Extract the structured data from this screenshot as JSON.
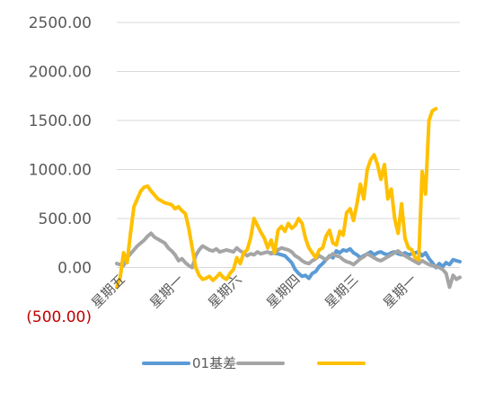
{
  "chart_data": {
    "type": "line",
    "ylim": [
      -500,
      2500
    ],
    "yticks": [
      {
        "value": 2500,
        "label": "2500.00"
      },
      {
        "value": 2000,
        "label": "2000.00"
      },
      {
        "value": 1500,
        "label": "1500.00"
      },
      {
        "value": 1000,
        "label": "1000.00"
      },
      {
        "value": 500,
        "label": "500.00"
      },
      {
        "value": 0,
        "label": "0.00"
      },
      {
        "value": -500,
        "label": "(500.00)"
      }
    ],
    "xlim": [
      0,
      100
    ],
    "x_tick_labels": [
      {
        "x": 0,
        "label": "星期五"
      },
      {
        "x": 17,
        "label": "星期一"
      },
      {
        "x": 34,
        "label": "星期六"
      },
      {
        "x": 51,
        "label": "星期四"
      },
      {
        "x": 68,
        "label": "星期三"
      },
      {
        "x": 85,
        "label": "星期一"
      }
    ],
    "grid": "horizontal",
    "legend_position": "bottom",
    "series": [
      {
        "name": "01基差",
        "color": "#5b9bd5",
        "points": [
          [
            45,
            150
          ],
          [
            47,
            140
          ],
          [
            49,
            120
          ],
          [
            51,
            50
          ],
          [
            52,
            -20
          ],
          [
            53,
            -60
          ],
          [
            54,
            -90
          ],
          [
            55,
            -80
          ],
          [
            56,
            -110
          ],
          [
            57,
            -60
          ],
          [
            58,
            -40
          ],
          [
            59,
            10
          ],
          [
            60,
            40
          ],
          [
            61,
            80
          ],
          [
            62,
            120
          ],
          [
            63,
            100
          ],
          [
            64,
            170
          ],
          [
            65,
            150
          ],
          [
            66,
            180
          ],
          [
            67,
            170
          ],
          [
            68,
            190
          ],
          [
            69,
            150
          ],
          [
            70,
            130
          ],
          [
            71,
            100
          ],
          [
            72,
            120
          ],
          [
            73,
            140
          ],
          [
            74,
            160
          ],
          [
            75,
            130
          ],
          [
            76,
            150
          ],
          [
            77,
            160
          ],
          [
            78,
            140
          ],
          [
            79,
            130
          ],
          [
            80,
            150
          ],
          [
            81,
            160
          ],
          [
            82,
            140
          ],
          [
            83,
            130
          ],
          [
            84,
            150
          ],
          [
            85,
            130
          ],
          [
            86,
            140
          ],
          [
            87,
            150
          ],
          [
            88,
            160
          ],
          [
            89,
            120
          ],
          [
            90,
            150
          ],
          [
            91,
            90
          ],
          [
            92,
            50
          ],
          [
            93,
            0
          ],
          [
            94,
            40
          ],
          [
            95,
            10
          ],
          [
            96,
            50
          ],
          [
            97,
            30
          ],
          [
            98,
            80
          ],
          [
            99,
            70
          ],
          [
            100,
            60
          ]
        ]
      },
      {
        "name": "",
        "color": "#a5a5a5",
        "points": [
          [
            0,
            40
          ],
          [
            2,
            20
          ],
          [
            3,
            100
          ],
          [
            5,
            180
          ],
          [
            6,
            220
          ],
          [
            8,
            280
          ],
          [
            9,
            320
          ],
          [
            10,
            350
          ],
          [
            11,
            310
          ],
          [
            12,
            290
          ],
          [
            13,
            270
          ],
          [
            14,
            250
          ],
          [
            15,
            200
          ],
          [
            16,
            170
          ],
          [
            17,
            130
          ],
          [
            18,
            70
          ],
          [
            19,
            90
          ],
          [
            20,
            50
          ],
          [
            21,
            20
          ],
          [
            22,
            0
          ],
          [
            23,
            120
          ],
          [
            24,
            180
          ],
          [
            25,
            220
          ],
          [
            26,
            200
          ],
          [
            27,
            180
          ],
          [
            28,
            170
          ],
          [
            29,
            190
          ],
          [
            30,
            160
          ],
          [
            31,
            170
          ],
          [
            32,
            180
          ],
          [
            33,
            170
          ],
          [
            34,
            160
          ],
          [
            35,
            200
          ],
          [
            36,
            170
          ],
          [
            37,
            150
          ],
          [
            38,
            120
          ],
          [
            39,
            140
          ],
          [
            40,
            130
          ],
          [
            41,
            160
          ],
          [
            42,
            140
          ],
          [
            43,
            150
          ],
          [
            44,
            160
          ],
          [
            45,
            140
          ],
          [
            46,
            150
          ],
          [
            47,
            180
          ],
          [
            48,
            200
          ],
          [
            49,
            190
          ],
          [
            50,
            180
          ],
          [
            51,
            160
          ],
          [
            52,
            120
          ],
          [
            53,
            100
          ],
          [
            54,
            70
          ],
          [
            55,
            50
          ],
          [
            56,
            40
          ],
          [
            57,
            70
          ],
          [
            58,
            90
          ],
          [
            59,
            120
          ],
          [
            60,
            100
          ],
          [
            61,
            80
          ],
          [
            62,
            110
          ],
          [
            63,
            140
          ],
          [
            64,
            120
          ],
          [
            65,
            110
          ],
          [
            66,
            80
          ],
          [
            67,
            60
          ],
          [
            68,
            50
          ],
          [
            69,
            30
          ],
          [
            70,
            60
          ],
          [
            71,
            90
          ],
          [
            72,
            110
          ],
          [
            73,
            140
          ],
          [
            74,
            120
          ],
          [
            75,
            100
          ],
          [
            76,
            80
          ],
          [
            77,
            70
          ],
          [
            78,
            90
          ],
          [
            79,
            110
          ],
          [
            80,
            130
          ],
          [
            81,
            150
          ],
          [
            82,
            170
          ],
          [
            83,
            140
          ],
          [
            84,
            120
          ],
          [
            85,
            100
          ],
          [
            86,
            80
          ],
          [
            87,
            60
          ],
          [
            88,
            40
          ],
          [
            89,
            70
          ],
          [
            90,
            50
          ],
          [
            91,
            30
          ],
          [
            92,
            20
          ],
          [
            93,
            10
          ],
          [
            94,
            0
          ],
          [
            95,
            -20
          ],
          [
            96,
            -60
          ],
          [
            97,
            -200
          ],
          [
            98,
            -80
          ],
          [
            99,
            -120
          ],
          [
            100,
            -100
          ]
        ]
      },
      {
        "name": "",
        "color": "#ffc000",
        "points": [
          [
            0,
            -200
          ],
          [
            1,
            -100
          ],
          [
            2,
            150
          ],
          [
            3,
            50
          ],
          [
            4,
            350
          ],
          [
            5,
            620
          ],
          [
            6,
            700
          ],
          [
            7,
            780
          ],
          [
            8,
            820
          ],
          [
            9,
            830
          ],
          [
            10,
            780
          ],
          [
            11,
            740
          ],
          [
            12,
            700
          ],
          [
            13,
            680
          ],
          [
            14,
            660
          ],
          [
            15,
            650
          ],
          [
            16,
            640
          ],
          [
            17,
            600
          ],
          [
            18,
            620
          ],
          [
            19,
            580
          ],
          [
            20,
            550
          ],
          [
            21,
            400
          ],
          [
            22,
            200
          ],
          [
            23,
            0
          ],
          [
            24,
            -80
          ],
          [
            25,
            -120
          ],
          [
            26,
            -110
          ],
          [
            27,
            -90
          ],
          [
            28,
            -130
          ],
          [
            29,
            -100
          ],
          [
            30,
            -60
          ],
          [
            31,
            -100
          ],
          [
            32,
            -120
          ],
          [
            33,
            -60
          ],
          [
            34,
            -20
          ],
          [
            35,
            100
          ],
          [
            36,
            40
          ],
          [
            37,
            150
          ],
          [
            38,
            180
          ],
          [
            39,
            300
          ],
          [
            40,
            500
          ],
          [
            41,
            430
          ],
          [
            42,
            360
          ],
          [
            43,
            300
          ],
          [
            44,
            200
          ],
          [
            45,
            280
          ],
          [
            46,
            150
          ],
          [
            47,
            380
          ],
          [
            48,
            420
          ],
          [
            49,
            370
          ],
          [
            50,
            450
          ],
          [
            51,
            400
          ],
          [
            52,
            430
          ],
          [
            53,
            500
          ],
          [
            54,
            450
          ],
          [
            55,
            300
          ],
          [
            56,
            200
          ],
          [
            57,
            150
          ],
          [
            58,
            100
          ],
          [
            59,
            180
          ],
          [
            60,
            200
          ],
          [
            61,
            320
          ],
          [
            62,
            380
          ],
          [
            63,
            250
          ],
          [
            64,
            230
          ],
          [
            65,
            370
          ],
          [
            66,
            330
          ],
          [
            67,
            560
          ],
          [
            68,
            600
          ],
          [
            69,
            480
          ],
          [
            70,
            650
          ],
          [
            71,
            850
          ],
          [
            72,
            700
          ],
          [
            73,
            1000
          ],
          [
            74,
            1100
          ],
          [
            75,
            1150
          ],
          [
            76,
            1050
          ],
          [
            77,
            900
          ],
          [
            78,
            1050
          ],
          [
            79,
            700
          ],
          [
            80,
            800
          ],
          [
            81,
            500
          ],
          [
            82,
            350
          ],
          [
            83,
            650
          ],
          [
            84,
            300
          ],
          [
            85,
            200
          ],
          [
            86,
            180
          ],
          [
            87,
            100
          ],
          [
            88,
            80
          ],
          [
            89,
            980
          ],
          [
            90,
            750
          ],
          [
            91,
            1500
          ],
          [
            92,
            1600
          ],
          [
            93,
            1620
          ]
        ]
      }
    ]
  }
}
